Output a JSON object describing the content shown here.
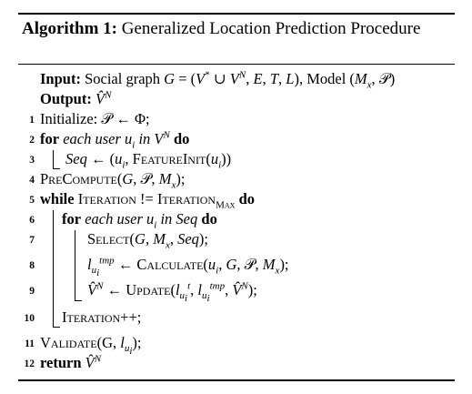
{
  "title": {
    "label": "Algorithm 1:",
    "text": "Generalized Location Prediction Procedure"
  },
  "lines": [
    {
      "num": "",
      "text": "Input: Social graph G = (V* ∪ V^N, E, T, L), Model (Mx, P)"
    },
    {
      "num": "",
      "text": "Output: V̂^N"
    },
    {
      "num": "1",
      "text": "Initialize: P ← Φ;"
    },
    {
      "num": "2",
      "text": "for each user ui in V^N do"
    },
    {
      "num": "3",
      "text": "Seq ← (ui, FeatureInit(ui))"
    },
    {
      "num": "4",
      "text": "PreCompute(G, P, Mx);"
    },
    {
      "num": "5",
      "text": "while Iteration != IterationMax do"
    },
    {
      "num": "6",
      "text": "for each user ui in Seq do"
    },
    {
      "num": "7",
      "text": "Select(G, Mx, Seq);"
    },
    {
      "num": "8",
      "text": "l_ui^tmp ← Calculate(ui, G, P, Mx);"
    },
    {
      "num": "9",
      "text": "V̂^N ← Update(l_ui^t, l_ui^tmp, V̂^N);"
    },
    {
      "num": "10",
      "text": "Iteration++;"
    },
    {
      "num": "11",
      "text": "Validate(G, l_ui);"
    },
    {
      "num": "12",
      "text": "return V̂^N"
    }
  ]
}
